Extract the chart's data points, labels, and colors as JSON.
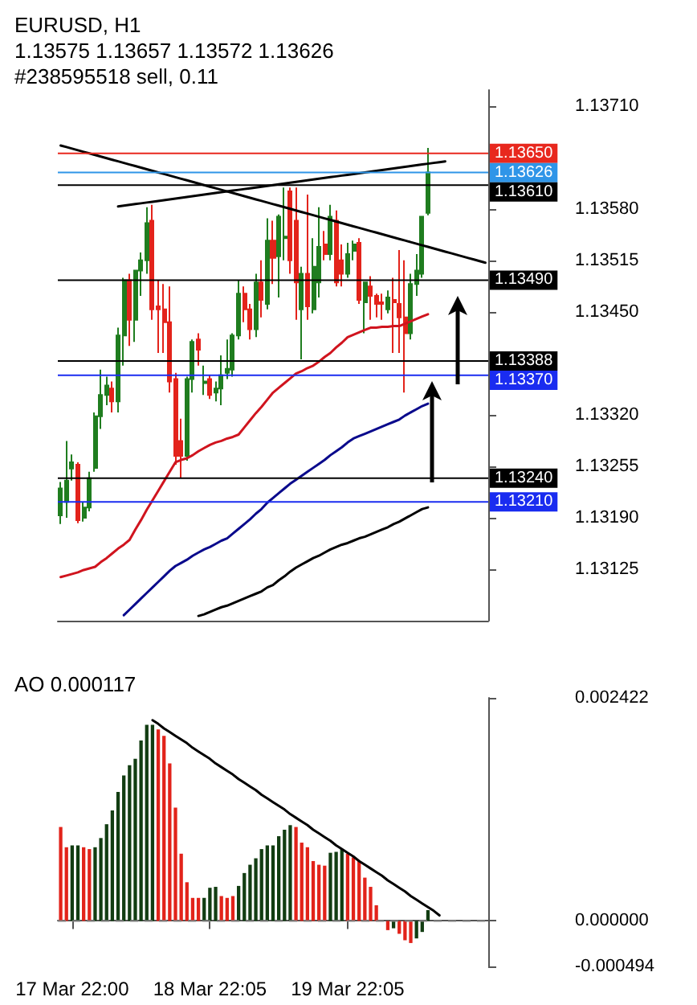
{
  "chart_data": [
    {
      "type": "candlestick",
      "title": "EURUSD, H1",
      "subtitle": "1.13575 1.13657 1.13572 1.13626",
      "annotations": [
        "#238595518 sell, 0.11"
      ],
      "categories": [
        null,
        null,
        null,
        null,
        null,
        null,
        null,
        null,
        null,
        null,
        null,
        null,
        null,
        null,
        null,
        null,
        null,
        null,
        null,
        null,
        null,
        null,
        null,
        null,
        null,
        null,
        null,
        null,
        null,
        null,
        null,
        null,
        null,
        null,
        null,
        null,
        null,
        null,
        null,
        null,
        null,
        null,
        null,
        null,
        null,
        null,
        null,
        null,
        null,
        null,
        null,
        null,
        null,
        null,
        null,
        null,
        null,
        null,
        null,
        null,
        null,
        null,
        null,
        null,
        null,
        null,
        null,
        null,
        null,
        null,
        null,
        null,
        null,
        null,
        null
      ],
      "ylim": [
        1.1306,
        1.1373
      ],
      "yticks": [
        {
          "value": 1.1371,
          "label": "1.13710"
        },
        {
          "value": 1.1358,
          "label": "1.13580"
        },
        {
          "value": 1.13515,
          "label": "1.13515"
        },
        {
          "value": 1.1345,
          "label": "1.13450"
        },
        {
          "value": 1.1332,
          "label": "1.13320"
        },
        {
          "value": 1.13255,
          "label": "1.13255"
        },
        {
          "value": 1.1319,
          "label": "1.13190"
        },
        {
          "value": 1.13125,
          "label": "1.13125"
        }
      ],
      "marker": "none",
      "series": [
        {
          "type": "candlestick",
          "ohlc": [
            [
              1.13193,
              1.13235,
              1.13182,
              1.13227
            ],
            [
              1.1321,
              1.13287,
              1.1319,
              1.13237
            ],
            [
              1.13252,
              1.1327,
              1.13237,
              1.1326
            ],
            [
              1.13257,
              1.1326,
              1.13183,
              1.13187
            ],
            [
              1.1319,
              1.1321,
              1.13185,
              1.13203
            ],
            [
              1.13203,
              1.13248,
              1.13198,
              1.1324
            ],
            [
              1.13253,
              1.13323,
              1.13248,
              1.13318
            ],
            [
              1.13318,
              1.13377,
              1.13302,
              1.13345
            ],
            [
              1.13345,
              1.13368,
              1.13332,
              1.13357
            ],
            [
              1.13353,
              1.13362,
              1.13323,
              1.13337
            ],
            [
              1.13337,
              1.1343,
              1.13323,
              1.1342
            ],
            [
              1.1342,
              1.13493,
              1.13382,
              1.1349
            ],
            [
              1.1349,
              1.13498,
              1.13407,
              1.1344
            ],
            [
              1.1344,
              1.13502,
              1.13412,
              1.13502
            ],
            [
              1.13502,
              1.13525,
              1.1347,
              1.13515
            ],
            [
              1.13515,
              1.13582,
              1.13498,
              1.13562
            ],
            [
              1.13565,
              1.13585,
              1.1344,
              1.13453
            ],
            [
              1.13457,
              1.1349,
              1.13398,
              1.13453
            ],
            [
              1.13453,
              1.13485,
              1.13398,
              1.13437
            ],
            [
              1.13437,
              1.13482,
              1.13348,
              1.13362
            ],
            [
              1.13365,
              1.13373,
              1.13257,
              1.13268
            ],
            [
              1.13287,
              1.13315,
              1.1324,
              1.13268
            ],
            [
              1.13268,
              1.13368,
              1.13262,
              1.13365
            ],
            [
              1.13365,
              1.13415,
              1.13348,
              1.13412
            ],
            [
              1.13415,
              1.13423,
              1.13382,
              1.13402
            ],
            [
              1.1336,
              1.13382,
              1.13345,
              1.13362
            ],
            [
              1.13365,
              1.1337,
              1.1334,
              1.13345
            ],
            [
              1.13348,
              1.13362,
              1.13337,
              1.13353
            ],
            [
              1.13353,
              1.13395,
              1.13332,
              1.1337
            ],
            [
              1.13373,
              1.13415,
              1.13365,
              1.13378
            ],
            [
              1.13377,
              1.13423,
              1.13368,
              1.1342
            ],
            [
              1.1342,
              1.1349,
              1.13415,
              1.13473
            ],
            [
              1.13473,
              1.13482,
              1.13437,
              1.13453
            ],
            [
              1.13453,
              1.1346,
              1.13415,
              1.13428
            ],
            [
              1.13428,
              1.13498,
              1.13418,
              1.13487
            ],
            [
              1.13487,
              1.13515,
              1.13443,
              1.13465
            ],
            [
              1.1346,
              1.13568,
              1.13453,
              1.1354
            ],
            [
              1.1354,
              1.13565,
              1.13485,
              1.13518
            ],
            [
              1.1352,
              1.13573,
              1.13468,
              1.1357
            ],
            [
              1.13543,
              1.13607,
              1.13515,
              1.13545
            ],
            [
              1.13602,
              1.13607,
              1.13498,
              1.13515
            ],
            [
              1.13565,
              1.13607,
              1.1344,
              1.13487
            ],
            [
              1.13453,
              1.13507,
              1.1339,
              1.13498
            ],
            [
              1.13498,
              1.13598,
              1.1344,
              1.13457
            ],
            [
              1.13453,
              1.13543,
              1.13448,
              1.13507
            ],
            [
              1.13487,
              1.13582,
              1.13468,
              1.13532
            ],
            [
              1.13535,
              1.13552,
              1.13515,
              1.13523
            ],
            [
              1.13523,
              1.13585,
              1.13515,
              1.1357
            ],
            [
              1.13565,
              1.13578,
              1.13482,
              1.13487
            ],
            [
              1.13515,
              1.13535,
              1.13482,
              1.13498
            ],
            [
              1.13498,
              1.13537,
              1.13493,
              1.13523
            ],
            [
              1.13527,
              1.1354,
              1.13515,
              1.13535
            ],
            [
              1.13537,
              1.13543,
              1.1346,
              1.13465
            ],
            [
              1.13462,
              1.13487,
              1.13423,
              1.13487
            ],
            [
              1.13482,
              1.13495,
              1.1344,
              1.1347
            ],
            [
              1.1347,
              1.13473,
              1.13443,
              1.1346
            ],
            [
              1.13462,
              1.13473,
              1.1344,
              1.1346
            ],
            [
              1.13453,
              1.13477,
              1.13448,
              1.13468
            ],
            [
              1.13465,
              1.13493,
              1.13398,
              1.13462
            ],
            [
              1.1346,
              1.13528,
              1.13398,
              1.13443
            ],
            [
              1.13443,
              1.13515,
              1.13348,
              1.13423
            ],
            [
              1.13423,
              1.13498,
              1.13415,
              1.13485
            ],
            [
              1.13485,
              1.13523,
              1.1347,
              1.13502
            ],
            [
              1.13498,
              1.1357,
              1.13493,
              1.1357
            ],
            [
              1.13575,
              1.13657,
              1.13572,
              1.13626
            ],
            null,
            null,
            null,
            null,
            null,
            null,
            null,
            null,
            null,
            null
          ],
          "colors": [
            "#1f7d1f",
            "#1f7d1f",
            "#1f7d1f",
            "#e3231b",
            "#1f7d1f",
            "#1f7d1f",
            "#1f7d1f",
            "#1f7d1f",
            "#1f7d1f",
            "#e3231b",
            "#1f7d1f",
            "#1f7d1f",
            "#e3231b",
            "#1f7d1f",
            "#1f7d1f",
            "#1f7d1f",
            "#e3231b",
            "#e3231b",
            "#e3231b",
            "#e3231b",
            "#e3231b",
            "#e3231b",
            "#1f7d1f",
            "#1f7d1f",
            "#e3231b",
            "#1f7d1f",
            "#e3231b",
            "#1f7d1f",
            "#1f7d1f",
            "#1f7d1f",
            "#1f7d1f",
            "#1f7d1f",
            "#e3231b",
            "#e3231b",
            "#1f7d1f",
            "#e3231b",
            "#1f7d1f",
            "#e3231b",
            "#1f7d1f",
            "#1f7d1f",
            "#e3231b",
            "#e3231b",
            "#1f7d1f",
            "#e3231b",
            "#1f7d1f",
            "#1f7d1f",
            "#e3231b",
            "#1f7d1f",
            "#e3231b",
            "#e3231b",
            "#1f7d1f",
            "#1f7d1f",
            "#e3231b",
            "#1f7d1f",
            "#e3231b",
            "#e3231b",
            "#e3231b",
            "#1f7d1f",
            "#e3231b",
            "#e3231b",
            "#e3231b",
            "#1f7d1f",
            "#1f7d1f",
            "#1f7d1f",
            "#1f7d1f",
            null,
            null,
            null,
            null,
            null,
            null,
            null,
            null,
            null,
            null
          ]
        },
        {
          "type": "line",
          "color": "#d0141e",
          "values": [
            1.13115,
            1.13117,
            1.13119,
            1.13121,
            1.13124,
            1.13126,
            1.13128,
            1.13134,
            1.13139,
            1.13145,
            1.13151,
            1.13156,
            1.13162,
            1.13175,
            1.13187,
            1.132,
            1.13212,
            1.13224,
            1.13236,
            1.13248,
            1.1326,
            1.13263,
            1.13265,
            1.13269,
            1.13274,
            1.13278,
            1.13282,
            1.13285,
            1.13287,
            1.1329,
            1.13292,
            1.13295,
            1.13304,
            1.13313,
            1.13322,
            1.1333,
            1.13339,
            1.13348,
            1.13354,
            1.1336,
            1.13366,
            1.13372,
            1.13375,
            1.13379,
            1.13382,
            1.13387,
            1.13393,
            1.13398,
            1.13405,
            1.13411,
            1.13418,
            1.13421,
            1.13424,
            1.13427,
            1.1343,
            1.1343,
            1.13431,
            1.13431,
            1.13432,
            1.13432,
            1.13435,
            1.13438,
            1.13441,
            1.13444,
            1.13447,
            null,
            null,
            null,
            null,
            null,
            null,
            null,
            null,
            null,
            null
          ]
        },
        {
          "type": "line",
          "color": "#0a0a8c",
          "values": [
            null,
            null,
            null,
            null,
            null,
            null,
            null,
            null,
            null,
            null,
            null,
            1.13067,
            1.13074,
            1.13081,
            1.13088,
            1.13095,
            1.13102,
            1.13109,
            1.13116,
            1.13123,
            1.13129,
            1.13133,
            1.13137,
            1.13142,
            1.13146,
            1.1315,
            1.13153,
            1.13157,
            1.13161,
            1.13164,
            1.1317,
            1.13176,
            1.13182,
            1.13188,
            1.13195,
            1.13201,
            1.13209,
            1.13215,
            1.13221,
            1.13227,
            1.13233,
            1.13238,
            1.13243,
            1.13248,
            1.13253,
            1.13258,
            1.13263,
            1.13269,
            1.13274,
            1.13279,
            1.13285,
            1.1329,
            1.13293,
            1.13296,
            1.13299,
            1.13302,
            1.13305,
            1.13308,
            1.13311,
            1.13314,
            1.13319,
            1.13323,
            1.13327,
            1.13331,
            1.13334,
            null,
            null,
            null,
            null,
            null,
            null,
            null,
            null,
            null,
            null
          ]
        },
        {
          "type": "line",
          "color": "#000000",
          "values": [
            null,
            null,
            null,
            null,
            null,
            null,
            null,
            null,
            null,
            null,
            null,
            null,
            null,
            null,
            null,
            null,
            null,
            null,
            null,
            null,
            null,
            null,
            null,
            null,
            1.13066,
            1.13068,
            1.13071,
            1.13074,
            1.13077,
            1.13079,
            1.13082,
            1.13085,
            1.13088,
            1.13091,
            1.13094,
            1.13097,
            1.13102,
            1.13105,
            1.13111,
            1.13116,
            1.13122,
            1.13127,
            1.13131,
            1.13135,
            1.13139,
            1.13142,
            1.13146,
            1.1315,
            1.13153,
            1.13156,
            1.13158,
            1.13161,
            1.13164,
            1.13166,
            1.13169,
            1.13172,
            1.13175,
            1.13178,
            1.13182,
            1.13185,
            1.13189,
            1.13193,
            1.13197,
            1.13201,
            1.13203,
            null,
            null,
            null,
            null,
            null,
            null,
            null,
            null,
            null,
            null
          ]
        },
        {
          "type": "line",
          "color": "#000000",
          "values": [
            null,
            null,
            null,
            null,
            null,
            null,
            null,
            null,
            null,
            null,
            1.13583,
            1.13584,
            1.13585,
            1.13586,
            1.13587,
            1.13588,
            1.13589,
            1.1359,
            1.13591,
            1.13592,
            1.13593,
            1.13594,
            1.13595,
            1.13596,
            1.13597,
            1.13598,
            1.13599,
            1.136,
            1.13601,
            1.13602,
            1.13603,
            1.13604,
            1.13605,
            1.13606,
            1.13607,
            1.13608,
            1.13609,
            1.1361,
            1.13611,
            1.13612,
            1.13613,
            1.13614,
            1.13615,
            1.13616,
            1.13617,
            1.13618,
            1.13619,
            1.1362,
            1.13621,
            1.13622,
            1.13623,
            1.13624,
            1.13625,
            1.13626,
            1.13627,
            1.13628,
            1.13629,
            1.1363,
            1.13631,
            1.13632,
            1.13633,
            1.13634,
            1.13635,
            1.13636,
            1.13637,
            1.13638,
            1.13639,
            1.1364,
            null,
            null,
            null,
            null,
            null,
            null,
            null
          ]
        },
        {
          "type": "line",
          "color": "#000000",
          "values": [
            1.1366,
            1.13658,
            1.13656,
            1.13654,
            1.13652,
            1.1365,
            1.13648,
            1.13646,
            1.13644,
            1.13642,
            1.1364,
            1.13638,
            1.13636,
            1.13634,
            1.13632,
            1.1363,
            1.13628,
            1.13626,
            1.13624,
            1.13622,
            1.1362,
            1.13618,
            1.13616,
            1.13614,
            1.13612,
            1.1361,
            1.13608,
            1.13606,
            1.13604,
            1.13602,
            1.136,
            1.13598,
            1.13596,
            1.13594,
            1.13592,
            1.1359,
            1.13588,
            1.13586,
            1.13584,
            1.13582,
            1.1358,
            1.13578,
            1.13576,
            1.13574,
            1.13572,
            1.1357,
            1.13568,
            1.13566,
            1.13564,
            1.13562,
            1.1356,
            1.13558,
            1.13556,
            1.13554,
            1.13552,
            1.1355,
            1.13548,
            1.13546,
            1.13544,
            1.13542,
            1.1354,
            1.13538,
            1.13536,
            1.13534,
            1.13532,
            1.1353,
            1.13528,
            1.13526,
            1.13524,
            1.13522,
            1.1352,
            1.13518,
            1.13516,
            1.13514,
            1.13512
          ]
        }
      ],
      "ref_lines": [
        {
          "axis": "y",
          "value": 1.1365,
          "label": "1.13650",
          "color": "#e8281e"
        },
        {
          "axis": "y",
          "value": 1.13626,
          "label": "1.13626",
          "color": "#2f95e8"
        },
        {
          "axis": "y",
          "value": 1.1361,
          "label": "1.13610",
          "color": "#000000"
        },
        {
          "axis": "y",
          "value": 1.1349,
          "label": "1.13490",
          "color": "#000000"
        },
        {
          "axis": "y",
          "value": 1.13388,
          "label": "1.13388",
          "color": "#000000"
        },
        {
          "axis": "y",
          "value": 1.1337,
          "label": "1.13370",
          "color": "#1a2cf0"
        },
        {
          "axis": "y",
          "value": 1.1324,
          "label": "1.13240",
          "color": "#000000"
        },
        {
          "axis": "y",
          "value": 1.1321,
          "label": "1.13210",
          "color": "#1a2cf0"
        }
      ]
    },
    {
      "type": "bar",
      "title": "AO 0.000117",
      "categories": [
        null,
        null,
        "17 Mar 22:00",
        null,
        null,
        null,
        null,
        null,
        null,
        null,
        null,
        null,
        null,
        null,
        null,
        null,
        null,
        null,
        null,
        null,
        null,
        null,
        null,
        null,
        null,
        null,
        "18 Mar 22:05",
        null,
        null,
        null,
        null,
        null,
        null,
        null,
        null,
        null,
        null,
        null,
        null,
        null,
        null,
        null,
        null,
        null,
        null,
        null,
        null,
        null,
        null,
        null,
        "19 Mar 22:05",
        null,
        null,
        null,
        null,
        null,
        null,
        null,
        null,
        null,
        null,
        null,
        null,
        null,
        null,
        null,
        null,
        null,
        null,
        null,
        null,
        null,
        null,
        null,
        null
      ],
      "ylim": [
        -0.000494,
        0.002422
      ],
      "yticks": [
        {
          "value": 0.002422,
          "label": "0.002422"
        },
        {
          "value": 0,
          "label": "0.000000"
        },
        {
          "value": -0.000494,
          "label": "-0.000494"
        }
      ],
      "marker": "none",
      "series": [
        {
          "type": "bar",
          "values": [
            0.00102,
            0.0008,
            0.00082,
            0.00082,
            0.0008,
            0.00078,
            0.0008,
            0.0009,
            0.00105,
            0.0012,
            0.0014,
            0.00158,
            0.00169,
            0.00176,
            0.00196,
            0.00213,
            0.00213,
            0.00208,
            0.00201,
            0.00171,
            0.00123,
            0.00073,
            0.00042,
            0.00025,
            0.00025,
            0.00025,
            0.00036,
            0.00037,
            0.00027,
            0.00025,
            0.00027,
            0.00038,
            0.00052,
            0.00061,
            0.00068,
            0.00078,
            0.00082,
            0.00082,
            0.00092,
            0.00099,
            0.00104,
            0.00102,
            0.00085,
            0.0008,
            0.00065,
            0.00061,
            0.0006,
            0.00074,
            0.00075,
            0.00078,
            0.00073,
            0.00069,
            0.00065,
            0.00047,
            0.00037,
            0.00017,
            0,
            -0.0001,
            -8e-05,
            -0.00014,
            -0.00021,
            -0.00024,
            -0.00019,
            -0.00012,
            0.000117,
            null,
            null,
            null,
            null,
            null,
            null,
            null,
            null,
            null,
            null
          ],
          "colors": [
            "#e2231a",
            "#e2231a",
            "#123d12",
            "#123d12",
            "#e2231a",
            "#e2231a",
            "#123d12",
            "#123d12",
            "#123d12",
            "#123d12",
            "#123d12",
            "#123d12",
            "#123d12",
            "#123d12",
            "#123d12",
            "#123d12",
            "#123d12",
            "#e2231a",
            "#e2231a",
            "#e2231a",
            "#e2231a",
            "#e2231a",
            "#e2231a",
            "#e2231a",
            "#e2231a",
            "#123d12",
            "#123d12",
            "#123d12",
            "#e2231a",
            "#e2231a",
            "#e2231a",
            "#123d12",
            "#123d12",
            "#123d12",
            "#123d12",
            "#123d12",
            "#123d12",
            "#123d12",
            "#123d12",
            "#123d12",
            "#123d12",
            "#e2231a",
            "#e2231a",
            "#e2231a",
            "#e2231a",
            "#e2231a",
            "#e2231a",
            "#123d12",
            "#123d12",
            "#123d12",
            "#e2231a",
            "#e2231a",
            "#e2231a",
            "#e2231a",
            "#e2231a",
            "#e2231a",
            "#e2231a",
            "#e2231a",
            "#123d12",
            "#e2231a",
            "#e2231a",
            "#e2231a",
            "#123d12",
            "#123d12",
            "#123d12",
            null,
            null,
            null,
            null,
            null,
            null,
            null,
            null,
            null,
            null
          ]
        },
        {
          "type": "line",
          "color": "#000000",
          "values": [
            null,
            null,
            null,
            null,
            null,
            null,
            null,
            null,
            null,
            null,
            null,
            null,
            null,
            null,
            null,
            null,
            0.00218,
            0.00214,
            0.00209,
            0.00205,
            0.00201,
            0.00197,
            0.00193,
            0.00188,
            0.00184,
            0.0018,
            0.00176,
            0.00171,
            0.00167,
            0.00163,
            0.00159,
            0.00154,
            0.0015,
            0.00146,
            0.00142,
            0.00137,
            0.00133,
            0.00129,
            0.00125,
            0.00121,
            0.00116,
            0.00112,
            0.00108,
            0.00104,
            0.00099,
            0.00095,
            0.00091,
            0.00087,
            0.00082,
            0.00078,
            0.00074,
            0.0007,
            0.00065,
            0.00061,
            0.00057,
            0.00053,
            0.00049,
            0.00044,
            0.0004,
            0.00036,
            0.00032,
            0.00027,
            0.00023,
            0.00019,
            0.00015,
            0.00011,
            6e-05,
            null,
            null,
            null,
            null,
            null,
            null,
            null,
            null
          ]
        }
      ],
      "ref_lines": [
        {
          "axis": "y",
          "value": 0,
          "color": "#808080",
          "line_style": "dashed"
        }
      ]
    }
  ]
}
